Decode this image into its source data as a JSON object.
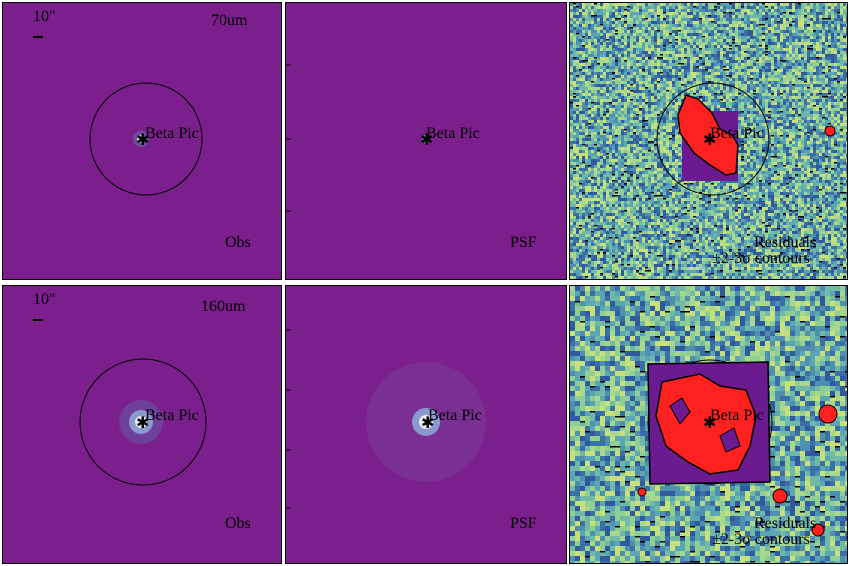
{
  "figure": {
    "rows": [
      {
        "band": "70um",
        "obs": {
          "scale_label": "10\"",
          "band_label": "70um",
          "target": "Beta Pic",
          "type_label": "Obs"
        },
        "psf": {
          "target": "Beta Pic",
          "type_label": "PSF",
          "yticks": [
            "150",
            "100",
            "50"
          ]
        },
        "residual": {
          "target": "Beta Pic",
          "type_line1": "Residuals",
          "type_line2": "±2-3σ contours"
        }
      },
      {
        "band": "160um",
        "obs": {
          "scale_label": "10\"",
          "band_label": "160um",
          "target": "Beta Pic",
          "type_label": "Obs"
        },
        "psf": {
          "target": "Beta Pic",
          "type_label": "PSF",
          "yticks": [
            "80",
            "60",
            "40",
            "20"
          ]
        },
        "residual": {
          "target": "Beta Pic",
          "type_line1": "Residuals",
          "type_line2": "±2-3σ contours"
        }
      }
    ],
    "colors": {
      "background": "#7b1f8c",
      "residual_noise": "#5fb0a8",
      "residual_positive": "#ff2020",
      "residual_negative": "#6b1a90",
      "contour": "#000000"
    }
  }
}
